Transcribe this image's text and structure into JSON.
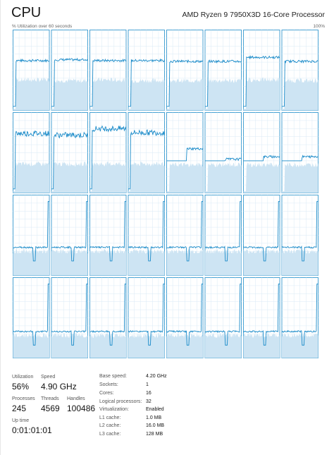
{
  "header": {
    "title": "CPU",
    "processor": "AMD Ryzen 9 7950X3D 16-Core Processor",
    "graph_label": "% Utilization over 60 seconds",
    "max_label": "100%"
  },
  "colors": {
    "graph_stroke": "#1b8bc9",
    "graph_fill": "#cde4f3",
    "grid_line": "#d9eaf6",
    "border": "#1b8bc9"
  },
  "grid": {
    "columns": 8,
    "rows": 4,
    "cores": [
      {
        "id": 0,
        "high": 0.62,
        "low": 0.38,
        "pattern": "flat"
      },
      {
        "id": 1,
        "high": 0.63,
        "low": 0.37,
        "pattern": "flat"
      },
      {
        "id": 2,
        "high": 0.62,
        "low": 0.38,
        "pattern": "flat"
      },
      {
        "id": 3,
        "high": 0.62,
        "low": 0.37,
        "pattern": "flat"
      },
      {
        "id": 4,
        "high": 0.61,
        "low": 0.37,
        "pattern": "flat"
      },
      {
        "id": 5,
        "high": 0.61,
        "low": 0.37,
        "pattern": "flat"
      },
      {
        "id": 6,
        "high": 0.66,
        "low": 0.38,
        "pattern": "flat"
      },
      {
        "id": 7,
        "high": 0.61,
        "low": 0.37,
        "pattern": "flat"
      },
      {
        "id": 8,
        "high": 0.74,
        "low": 0.36,
        "pattern": "noisy"
      },
      {
        "id": 9,
        "high": 0.72,
        "low": 0.36,
        "pattern": "noisy"
      },
      {
        "id": 10,
        "high": 0.8,
        "low": 0.36,
        "pattern": "noisy"
      },
      {
        "id": 11,
        "high": 0.75,
        "low": 0.36,
        "pattern": "noisy"
      },
      {
        "id": 12,
        "high": 0.55,
        "low": 0.35,
        "pattern": "late"
      },
      {
        "id": 13,
        "high": 0.42,
        "low": 0.35,
        "pattern": "late"
      },
      {
        "id": 14,
        "high": 0.45,
        "low": 0.35,
        "pattern": "late"
      },
      {
        "id": 15,
        "high": 0.45,
        "low": 0.35,
        "pattern": "late"
      },
      {
        "id": 16,
        "high": 0.35,
        "low": 0.3,
        "pattern": "dip"
      },
      {
        "id": 17,
        "high": 0.35,
        "low": 0.3,
        "pattern": "dip"
      },
      {
        "id": 18,
        "high": 0.35,
        "low": 0.3,
        "pattern": "dip"
      },
      {
        "id": 19,
        "high": 0.35,
        "low": 0.3,
        "pattern": "dip"
      },
      {
        "id": 20,
        "high": 0.35,
        "low": 0.3,
        "pattern": "dip"
      },
      {
        "id": 21,
        "high": 0.35,
        "low": 0.3,
        "pattern": "dip"
      },
      {
        "id": 22,
        "high": 0.35,
        "low": 0.3,
        "pattern": "dip"
      },
      {
        "id": 23,
        "high": 0.35,
        "low": 0.3,
        "pattern": "dip"
      },
      {
        "id": 24,
        "high": 0.33,
        "low": 0.28,
        "pattern": "dip"
      },
      {
        "id": 25,
        "high": 0.33,
        "low": 0.28,
        "pattern": "dip"
      },
      {
        "id": 26,
        "high": 0.33,
        "low": 0.28,
        "pattern": "dip"
      },
      {
        "id": 27,
        "high": 0.33,
        "low": 0.28,
        "pattern": "dip"
      },
      {
        "id": 28,
        "high": 0.33,
        "low": 0.28,
        "pattern": "dip"
      },
      {
        "id": 29,
        "high": 0.33,
        "low": 0.28,
        "pattern": "dip"
      },
      {
        "id": 30,
        "high": 0.33,
        "low": 0.28,
        "pattern": "dip"
      },
      {
        "id": 31,
        "high": 0.33,
        "low": 0.28,
        "pattern": "dip"
      }
    ]
  },
  "stats": {
    "utilization_label": "Utilization",
    "utilization_value": "56%",
    "speed_label": "Speed",
    "speed_value": "4.90 GHz",
    "processes_label": "Processes",
    "processes_value": "245",
    "threads_label": "Threads",
    "threads_value": "4569",
    "handles_label": "Handles",
    "handles_value": "100486",
    "uptime_label": "Up time",
    "uptime_value": "0:01:01:01"
  },
  "specs": [
    {
      "label": "Base speed:",
      "value": "4.20 GHz"
    },
    {
      "label": "Sockets:",
      "value": "1"
    },
    {
      "label": "Cores:",
      "value": "16"
    },
    {
      "label": "Logical processors:",
      "value": "32"
    },
    {
      "label": "Virtualization:",
      "value": "Enabled"
    },
    {
      "label": "L1 cache:",
      "value": "1.0 MB"
    },
    {
      "label": "L2 cache:",
      "value": "16.0 MB"
    },
    {
      "label": "L3 cache:",
      "value": "128 MB"
    }
  ]
}
